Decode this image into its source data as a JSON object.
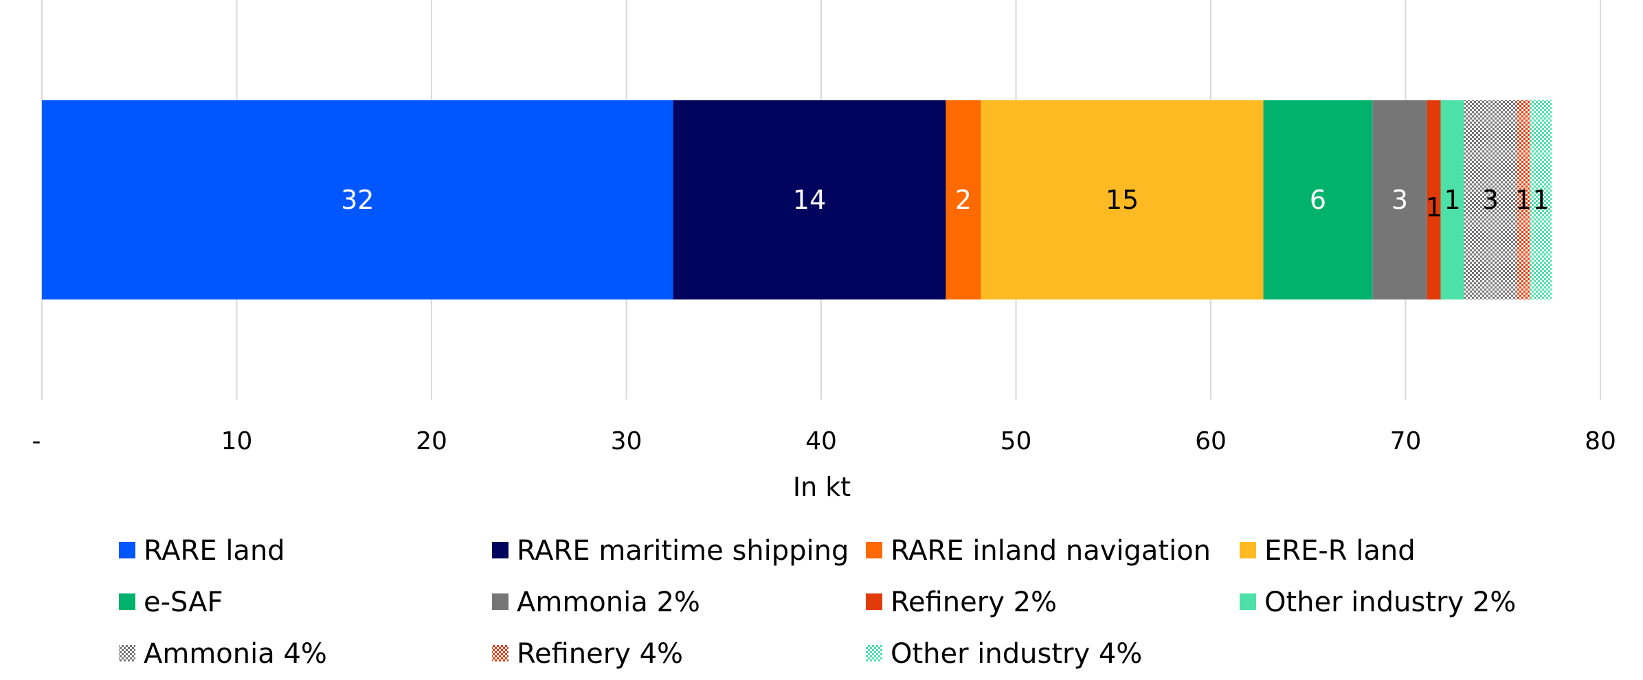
{
  "chart_data": {
    "type": "bar",
    "orientation": "horizontal",
    "stacked": true,
    "title": "",
    "xlabel": "In kt",
    "ylabel": "",
    "xlim": [
      0,
      80
    ],
    "x_ticks": [
      0,
      10,
      20,
      30,
      40,
      50,
      60,
      70,
      80
    ],
    "x_tick_labels": [
      "-",
      "10",
      "20",
      "30",
      "40",
      "50",
      "60",
      "70",
      "80"
    ],
    "grid": "vertical",
    "legend_position": "bottom",
    "series": [
      {
        "name": "RARE land",
        "value": 32.4,
        "label": "32",
        "color": "#0057FF",
        "pattern": "solid",
        "label_color": "#ffffff"
      },
      {
        "name": "RARE maritime shipping",
        "value": 14.0,
        "label": "14",
        "color": "#00045C",
        "pattern": "solid",
        "label_color": "#ffffff"
      },
      {
        "name": "RARE inland navigation",
        "value": 1.8,
        "label": "2",
        "color": "#FF6A00",
        "pattern": "solid",
        "label_color": "#ffffff"
      },
      {
        "name": "ERE-R land",
        "value": 14.5,
        "label": "15",
        "color": "#FDBA23",
        "pattern": "solid",
        "label_color": "#000000"
      },
      {
        "name": "e-SAF",
        "value": 5.6,
        "label": "6",
        "color": "#00B26B",
        "pattern": "solid",
        "label_color": "#ffffff"
      },
      {
        "name": "Ammonia 2%",
        "value": 2.8,
        "label": "3",
        "color": "#767676",
        "pattern": "solid",
        "label_color": "#ffffff"
      },
      {
        "name": "Refinery 2%",
        "value": 0.7,
        "label": "1",
        "color": "#E23B0A",
        "pattern": "solid",
        "label_color": "#000000"
      },
      {
        "name": "Other industry 2%",
        "value": 1.2,
        "label": "1",
        "color": "#4DE0A8",
        "pattern": "solid",
        "label_color": "#000000"
      },
      {
        "name": "Ammonia 4%",
        "value": 2.7,
        "label": "3",
        "color": "#767676",
        "pattern": "checker",
        "label_color": "#000000"
      },
      {
        "name": "Refinery 4%",
        "value": 0.7,
        "label": "1",
        "color": "#E23B0A",
        "pattern": "checker",
        "label_color": "#000000"
      },
      {
        "name": "Other industry 4%",
        "value": 1.1,
        "label": "1",
        "color": "#4DE0A8",
        "pattern": "checker",
        "label_color": "#000000"
      }
    ]
  }
}
